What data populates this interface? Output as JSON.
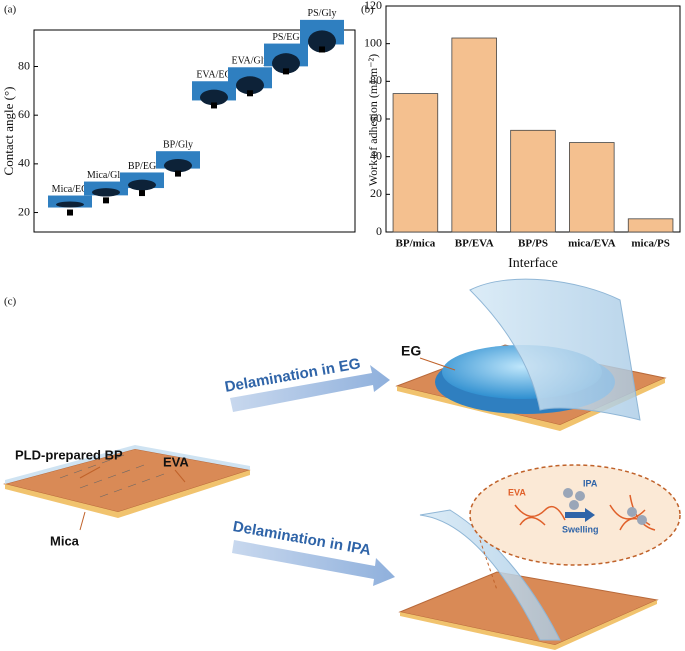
{
  "chart_data": [
    {
      "type": "scatter",
      "panel": "(a)",
      "ylabel": "Contact angle (°)",
      "categories": [
        "Mica/EG",
        "Mica/Gly",
        "BP/EG",
        "BP/Gly",
        "EVA/EG",
        "EVA/Gly",
        "PS/EG",
        "PS/Gly"
      ],
      "values": [
        20,
        25,
        28,
        36,
        64,
        69,
        78,
        87
      ],
      "color": "#000000",
      "ylim": [
        12,
        95
      ],
      "yticks": [
        20,
        40,
        60,
        80
      ]
    },
    {
      "type": "bar",
      "panel": "(b)",
      "xlabel": "Interface",
      "ylabel": "Work of adhesion (mJ m⁻²)",
      "categories": [
        "BP/mica",
        "BP/EVA",
        "BP/PS",
        "mica/EVA",
        "mica/PS"
      ],
      "values": [
        73.5,
        103,
        54,
        47.5,
        7
      ],
      "color": "#f4c08f",
      "ylim": [
        0,
        120
      ],
      "yticks": [
        0,
        20,
        40,
        60,
        80,
        100,
        120
      ]
    }
  ],
  "schematic": {
    "panel": "(c)",
    "sample_label": "PLD-prepared BP",
    "top_layer": "EVA",
    "bottom_layer": "Mica",
    "arrow_eg": "Delamination in EG",
    "arrow_ipa": "Delamination in IPA",
    "droplet": "EG",
    "inset_polymer": "EVA",
    "inset_solvent": "IPA",
    "inset_process": "Swelling"
  }
}
